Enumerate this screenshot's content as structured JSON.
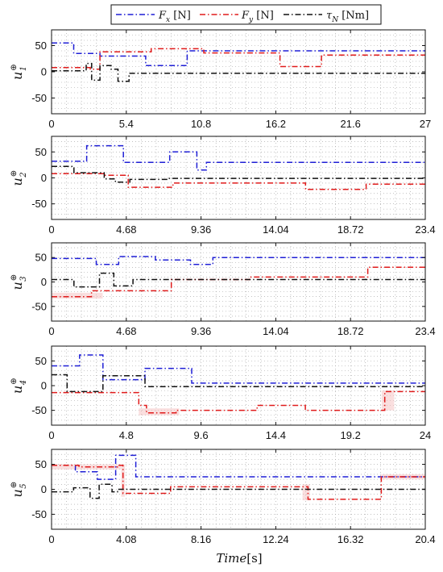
{
  "chart_data": {
    "type": "line",
    "xlabel": {
      "text": "Time",
      "unit": "[s]"
    },
    "legend": {
      "placement": "top-center",
      "entries": [
        {
          "symbol": "F",
          "sub": "x",
          "unit": " [N]",
          "color": "#1f1fd6"
        },
        {
          "symbol": "F",
          "sub": "y",
          "unit": " [N]",
          "color": "#e01b1b"
        },
        {
          "symbol": "τ",
          "sub": "N",
          "unit": " [Nm]",
          "color": "#111111"
        }
      ]
    },
    "grid": true,
    "colors": {
      "fx": "#1f1fd6",
      "fy": "#e01b1b",
      "tau": "#111111",
      "band": "#f4b8b8"
    },
    "panels": [
      {
        "ylabel": {
          "base": "u",
          "sup": "⊕",
          "sub": "1"
        },
        "xlim": [
          0,
          27
        ],
        "ylim": [
          -80,
          80
        ],
        "xticks": [
          "0",
          "5.4",
          "10.8",
          "16.2",
          "21.6",
          "27"
        ],
        "xtick_values": [
          0,
          5.4,
          10.8,
          16.2,
          21.6,
          27
        ],
        "yticks": [
          "50",
          "0",
          "-50"
        ],
        "ytick_values": [
          50,
          0,
          -50
        ],
        "series": [
          {
            "key": "fx",
            "x": [
              0,
              1.6,
              1.6,
              3.5,
              3.5,
              6.8,
              6.8,
              9.8,
              9.8,
              27
            ],
            "y": [
              55,
              55,
              35,
              35,
              30,
              30,
              12,
              12,
              40,
              40
            ]
          },
          {
            "key": "fy",
            "x": [
              0,
              2.8,
              2.8,
              3.5,
              3.5,
              7.2,
              7.2,
              11,
              11,
              16.5,
              16.5,
              19.5,
              19.5,
              27
            ],
            "y": [
              8,
              8,
              5,
              5,
              38,
              38,
              44,
              44,
              36,
              36,
              10,
              10,
              32,
              32
            ]
          },
          {
            "key": "tau",
            "x": [
              0,
              2.5,
              2.5,
              2.9,
              2.9,
              3.5,
              3.5,
              4.3,
              4.3,
              4.8,
              4.8,
              5.6,
              5.6,
              27
            ],
            "y": [
              2,
              2,
              16,
              16,
              -16,
              -16,
              12,
              12,
              5,
              5,
              -18,
              -18,
              -3,
              -3
            ]
          }
        ],
        "bands": []
      },
      {
        "ylabel": {
          "base": "u",
          "sup": "⊕",
          "sub": "2"
        },
        "xlim": [
          0,
          23.4
        ],
        "ylim": [
          -80,
          80
        ],
        "xticks": [
          "0",
          "4.68",
          "9.36",
          "14.04",
          "18.72",
          "23.4"
        ],
        "xtick_values": [
          0,
          4.68,
          9.36,
          14.04,
          18.72,
          23.4
        ],
        "yticks": [
          "50",
          "0",
          "-50"
        ],
        "ytick_values": [
          50,
          0,
          -50
        ],
        "series": [
          {
            "key": "fx",
            "x": [
              0,
              2.2,
              2.2,
              4.5,
              4.5,
              7.4,
              7.4,
              9.1,
              9.1,
              9.7,
              9.7,
              23.4
            ],
            "y": [
              32,
              32,
              62,
              62,
              30,
              30,
              50,
              50,
              15,
              15,
              30,
              30
            ]
          },
          {
            "key": "fy",
            "x": [
              0,
              3.3,
              3.3,
              4.8,
              4.8,
              7.6,
              7.6,
              15.9,
              15.9,
              19.7,
              19.7,
              23.4
            ],
            "y": [
              8,
              8,
              5,
              5,
              -18,
              -18,
              -10,
              -10,
              -22,
              -22,
              -12,
              -12
            ]
          },
          {
            "key": "tau",
            "x": [
              0,
              1.4,
              1.4,
              3.3,
              3.3,
              4.0,
              4.0,
              4.9,
              4.9,
              7.3,
              7.3,
              23.4
            ],
            "y": [
              22,
              22,
              10,
              10,
              -2,
              -2,
              -8,
              -8,
              -3,
              -3,
              -1,
              -1
            ]
          }
        ],
        "bands": []
      },
      {
        "ylabel": {
          "base": "u",
          "sup": "⊕",
          "sub": "3"
        },
        "xlim": [
          0,
          23.4
        ],
        "ylim": [
          -80,
          80
        ],
        "xticks": [
          "0",
          "4.68",
          "9.36",
          "14.04",
          "18.72",
          "23.4"
        ],
        "xtick_values": [
          0,
          4.68,
          9.36,
          14.04,
          18.72,
          23.4
        ],
        "yticks": [
          "50",
          "0",
          "-50"
        ],
        "ytick_values": [
          50,
          0,
          -50
        ],
        "series": [
          {
            "key": "fx",
            "x": [
              0,
              2.8,
              2.8,
              4.2,
              4.2,
              6.5,
              6.5,
              8.7,
              8.7,
              10.1,
              10.1,
              23.4
            ],
            "y": [
              48,
              48,
              36,
              36,
              52,
              52,
              45,
              45,
              36,
              36,
              50,
              50
            ]
          },
          {
            "key": "fy",
            "x": [
              0,
              2.5,
              2.5,
              7.5,
              7.5,
              12.4,
              12.4,
              19.8,
              19.8,
              23.4
            ],
            "y": [
              -30,
              -30,
              -18,
              -18,
              5,
              5,
              10,
              10,
              30,
              30
            ]
          },
          {
            "key": "tau",
            "x": [
              0,
              1.4,
              1.4,
              2.6,
              2.6,
              3.0,
              3.0,
              3.9,
              3.9,
              5.1,
              5.1,
              23.4
            ],
            "y": [
              5,
              5,
              -10,
              -10,
              -10,
              -10,
              18,
              18,
              -8,
              -8,
              5,
              5
            ]
          }
        ],
        "bands": [
          {
            "x": [
              0,
              3.2
            ],
            "y": [
              -34,
              -22
            ]
          }
        ]
      },
      {
        "ylabel": {
          "base": "u",
          "sup": "⊕",
          "sub": "4"
        },
        "xlim": [
          0,
          24
        ],
        "ylim": [
          -80,
          80
        ],
        "xticks": [
          "0",
          "4.8",
          "9.6",
          "14.4",
          "19.2",
          "24"
        ],
        "xtick_values": [
          0,
          4.8,
          9.6,
          14.4,
          19.2,
          24
        ],
        "yticks": [
          "50",
          "0",
          "-50"
        ],
        "ytick_values": [
          50,
          0,
          -50
        ],
        "series": [
          {
            "key": "fx",
            "x": [
              0,
              0.8,
              0.8,
              1.8,
              1.8,
              3.3,
              3.3,
              6.0,
              6.0,
              9.0,
              9.0,
              24
            ],
            "y": [
              40,
              40,
              40,
              40,
              62,
              62,
              12,
              12,
              35,
              35,
              5,
              5
            ]
          },
          {
            "key": "fy",
            "x": [
              0,
              5.6,
              5.6,
              6.1,
              6.1,
              8.0,
              8.0,
              13.2,
              13.2,
              16.3,
              16.3,
              21.4,
              21.4,
              24
            ],
            "y": [
              -14,
              -14,
              -40,
              -40,
              -55,
              -55,
              -50,
              -50,
              -40,
              -40,
              -50,
              -50,
              -12,
              -12
            ]
          },
          {
            "key": "tau",
            "x": [
              0,
              1.0,
              1.0,
              3.3,
              3.3,
              6.0,
              6.0,
              24
            ],
            "y": [
              22,
              22,
              -12,
              -12,
              20,
              20,
              -2,
              -2
            ]
          }
        ],
        "bands": [
          {
            "x": [
              5.6,
              8.2
            ],
            "y": [
              -60,
              -46
            ]
          },
          {
            "x": [
              21.2,
              22.0
            ],
            "y": [
              -50,
              -10
            ]
          }
        ]
      },
      {
        "ylabel": {
          "base": "u",
          "sup": "⊕",
          "sub": "5"
        },
        "xlim": [
          0,
          20.4
        ],
        "ylim": [
          -80,
          80
        ],
        "xticks": [
          "0",
          "4.08",
          "8.16",
          "12.24",
          "16.32",
          "20.4"
        ],
        "xtick_values": [
          0,
          4.08,
          8.16,
          12.24,
          16.32,
          20.4
        ],
        "yticks": [
          "50",
          "0",
          "-50"
        ],
        "ytick_values": [
          50,
          0,
          -50
        ],
        "series": [
          {
            "key": "fx",
            "x": [
              0,
              1.3,
              1.3,
              2.5,
              2.5,
              3.5,
              3.5,
              4.6,
              4.6,
              20.4
            ],
            "y": [
              48,
              48,
              35,
              35,
              20,
              20,
              68,
              68,
              25,
              25
            ]
          },
          {
            "key": "fy",
            "x": [
              0,
              1.5,
              1.5,
              3.6,
              3.6,
              3.9,
              3.9,
              6.5,
              6.5,
              14.0,
              14.0,
              18.0,
              18.0,
              20.4
            ],
            "y": [
              48,
              48,
              45,
              45,
              48,
              48,
              -8,
              -8,
              5,
              5,
              -20,
              -20,
              25,
              25
            ]
          },
          {
            "key": "tau",
            "x": [
              0,
              1.2,
              1.2,
              2.1,
              2.1,
              2.6,
              2.6,
              3.3,
              3.3,
              3.6,
              3.6,
              20.4
            ],
            "y": [
              -5,
              -5,
              3,
              3,
              -18,
              -18,
              10,
              10,
              -5,
              -5,
              0,
              0
            ]
          }
        ],
        "bands": [
          {
            "x": [
              0,
              3.8
            ],
            "y": [
              40,
              50
            ]
          },
          {
            "x": [
              3.8,
              4.0
            ],
            "y": [
              -15,
              50
            ]
          },
          {
            "x": [
              13.7,
              14.1
            ],
            "y": [
              -22,
              10
            ]
          },
          {
            "x": [
              18.0,
              20.4
            ],
            "y": [
              20,
              30
            ]
          }
        ]
      }
    ]
  }
}
